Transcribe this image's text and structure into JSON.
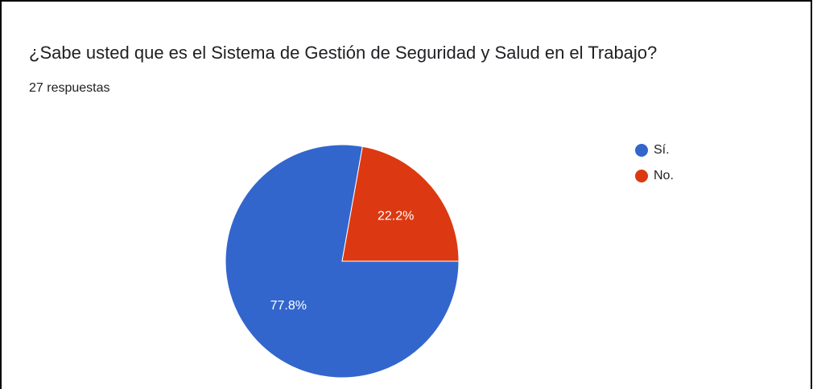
{
  "chart_data": {
    "type": "pie",
    "title": "¿Sabe usted que es el Sistema de Gestión de Seguridad y Salud en el Trabajo?",
    "subtitle": "27 respuestas",
    "categories": [
      "Sí.",
      "No."
    ],
    "values": [
      77.8,
      22.2
    ],
    "value_labels": [
      "77.8%",
      "22.2%"
    ],
    "colors": [
      "#3366cc",
      "#dc3912"
    ],
    "legend": "right"
  }
}
